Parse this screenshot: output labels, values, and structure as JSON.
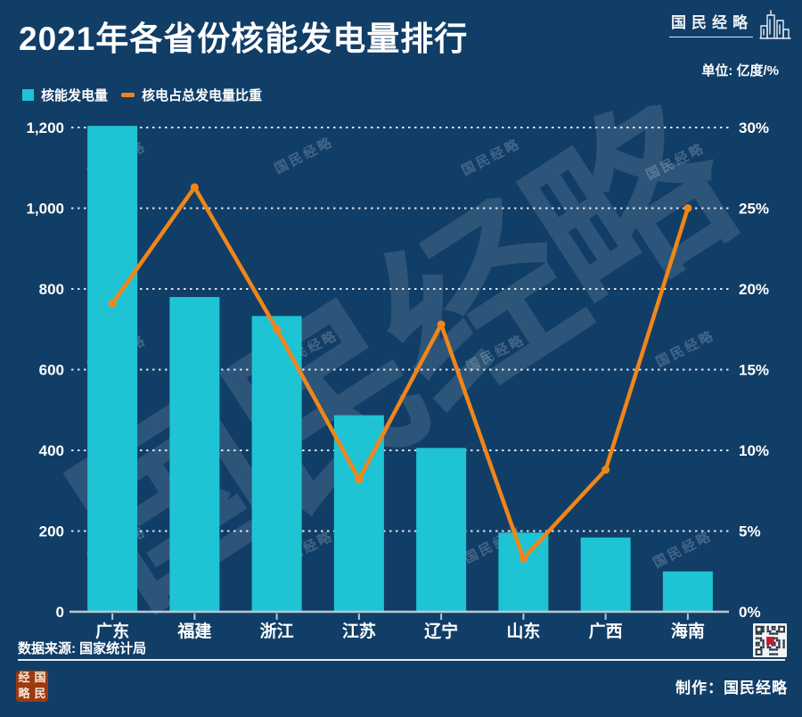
{
  "title": "2021年各省份核能发电量排行",
  "brand": {
    "logo_text": "国民经略"
  },
  "unit_label": "单位: 亿度/%",
  "legend": [
    {
      "label": "核能发电量",
      "swatch": "square",
      "color": "#1EC4D4"
    },
    {
      "label": "核电占总发电量比重",
      "swatch": "dash",
      "color": "#F08619"
    }
  ],
  "chart_data": {
    "type": "bar+line combo",
    "categories": [
      "广东",
      "福建",
      "浙江",
      "江苏",
      "辽宁",
      "山东",
      "广西",
      "海南"
    ],
    "series": [
      {
        "name": "核能发电量",
        "type": "bar",
        "axis": "left",
        "unit": "亿度",
        "color": "#1EC4D4",
        "values": [
          1204,
          780,
          733,
          487,
          406,
          196,
          184,
          100
        ]
      },
      {
        "name": "核电占总发电量比重",
        "type": "line",
        "axis": "right",
        "unit": "%",
        "color": "#F08619",
        "values": [
          19.1,
          26.3,
          17.5,
          8.2,
          17.8,
          3.3,
          8.8,
          25.0
        ]
      }
    ],
    "left_axis": {
      "min": 0,
      "max": 1200,
      "tick_labels": [
        "1,200",
        "1,000",
        "800",
        "600",
        "400",
        "200",
        "0"
      ]
    },
    "right_axis": {
      "min": 0,
      "max": 30,
      "tick_labels": [
        "30%",
        "25%",
        "20%",
        "15%",
        "10%",
        "5%",
        "0%"
      ]
    },
    "grid": "horizontal dotted",
    "legend_position": "top-left"
  },
  "watermark": {
    "text": "国民经略"
  },
  "footer": {
    "source": "数据来源: 国家统计局",
    "credit": "制作：国民经略",
    "seal_chars": [
      "经",
      "国",
      "略",
      "民"
    ]
  },
  "colors": {
    "background": "#113E67",
    "bar": "#1EC4D4",
    "line": "#F08619",
    "text": "#FFFFFF",
    "grid": "#D8E2EA",
    "seal": "#9C3A12"
  }
}
